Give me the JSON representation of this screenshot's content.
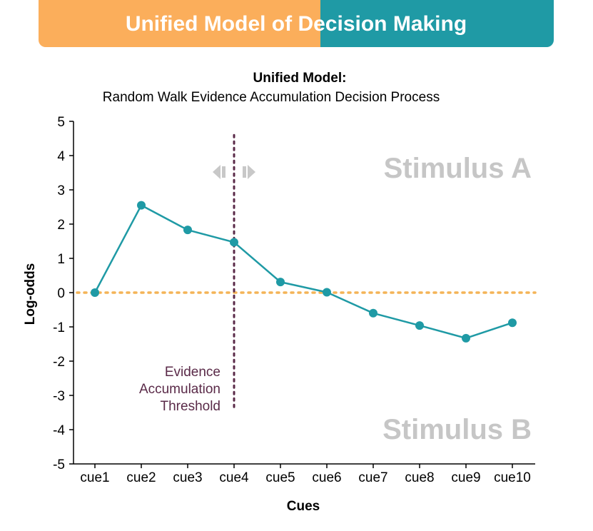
{
  "banner": {
    "title": "Unified Model of Decision Making",
    "color_left": "#fbae5b",
    "color_right": "#1f9aa5"
  },
  "chart_data": {
    "type": "line",
    "title": "Unified Model:",
    "subtitle": "Random Walk Evidence Accumulation Decision Process",
    "xlabel": "Cues",
    "ylabel": "Log-odds",
    "categories": [
      "cue1",
      "cue2",
      "cue3",
      "cue4",
      "cue5",
      "cue6",
      "cue7",
      "cue8",
      "cue9",
      "cue10"
    ],
    "series": [
      {
        "name": "Evidence",
        "values": [
          0.0,
          2.55,
          1.83,
          1.47,
          0.31,
          0.01,
          -0.6,
          -0.96,
          -1.33,
          -0.88
        ],
        "color": "#1f9aa5"
      }
    ],
    "ylim": [
      -5,
      5
    ],
    "yticks": [
      5,
      4,
      3,
      2,
      1,
      0,
      -1,
      -2,
      -3,
      -4,
      -5
    ],
    "ytick_labels": [
      "5",
      "4",
      "3",
      "2",
      "1",
      "0",
      "-1",
      "-2",
      "-3",
      "-4",
      "-5"
    ],
    "zero_line": {
      "value": 0,
      "color": "#f4b457"
    },
    "threshold": {
      "category": "cue4",
      "label_lines": [
        "Evidence",
        "Accumulation",
        "Threshold"
      ],
      "color": "#5a2a48",
      "ymin": -3.4,
      "ymax": 4.6
    },
    "annotations": [
      "Stimulus A",
      "Stimulus B"
    ],
    "arrow_color": "#c8c8c8"
  }
}
